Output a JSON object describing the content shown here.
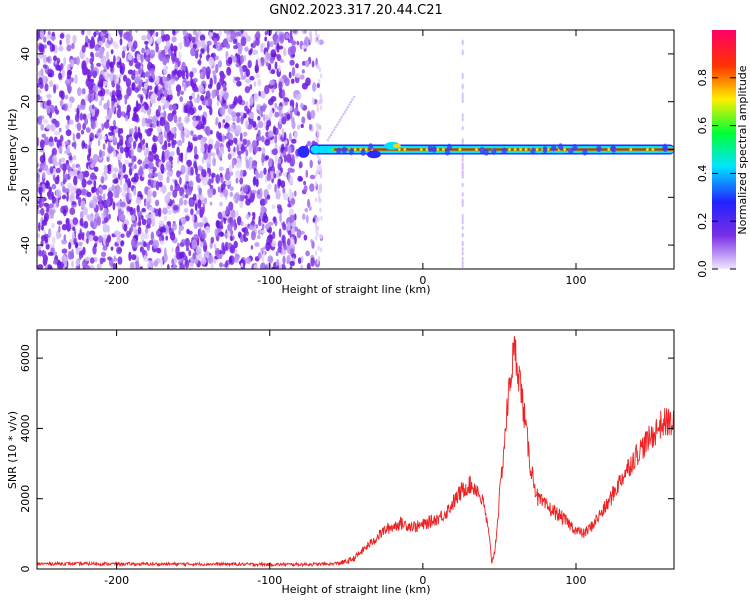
{
  "title": "GN02.2023.317.20.44.C21",
  "chart_data": [
    {
      "type": "heatmap",
      "xlabel": "Height of straight line (km)",
      "ylabel": "Frequency (Hz)",
      "xlim": [
        -252,
        164
      ],
      "ylim": [
        -50,
        50
      ],
      "x_ticks": [
        -200,
        -100,
        0,
        100
      ],
      "y_ticks": [
        -40,
        -20,
        0,
        20,
        40
      ],
      "colorbar": {
        "label": "Normalized spectral amplitude",
        "range": [
          0,
          1
        ],
        "ticks": [
          0.0,
          0.2,
          0.4,
          0.6,
          0.8
        ],
        "colors": [
          "#f0e6ff",
          "#7a2ee6",
          "#2222ff",
          "#00e5ff",
          "#00ff33",
          "#ffee00",
          "#ff3300",
          "#ff0066"
        ]
      },
      "noise_region_x": [
        -252,
        -66
      ],
      "carrier_frequency_hz": 0,
      "carrier_x": [
        -80,
        164
      ],
      "vertical_streak_x": 26
    },
    {
      "type": "line",
      "xlabel": "Height of straight line (km)",
      "ylabel": "SNR (10 * v/v)",
      "xlim": [
        -252,
        164
      ],
      "ylim": [
        0,
        6800
      ],
      "x_ticks": [
        -200,
        -100,
        0,
        100
      ],
      "y_ticks": [
        0,
        2000,
        4000,
        6000
      ],
      "series": [
        {
          "color": "#ee2222",
          "x": [
            -252,
            -220,
            -180,
            -140,
            -100,
            -80,
            -60,
            -50,
            -45,
            -40,
            -35,
            -30,
            -25,
            -20,
            -15,
            -10,
            -5,
            0,
            5,
            10,
            15,
            20,
            25,
            30,
            35,
            40,
            43,
            45,
            47,
            50,
            55,
            58,
            60,
            62,
            65,
            70,
            75,
            80,
            90,
            100,
            105,
            110,
            120,
            130,
            140,
            150,
            155,
            160,
            164
          ],
          "y": [
            150,
            150,
            140,
            140,
            130,
            130,
            140,
            200,
            300,
            500,
            700,
            900,
            1100,
            1200,
            1300,
            1250,
            1200,
            1250,
            1350,
            1450,
            1600,
            1900,
            2200,
            2400,
            2300,
            1800,
            1000,
            200,
            500,
            2000,
            4500,
            5800,
            6200,
            5800,
            4800,
            3000,
            2000,
            1800,
            1500,
            1100,
            1000,
            1200,
            1800,
            2600,
            3300,
            3800,
            4100,
            4200,
            4100
          ]
        }
      ]
    }
  ]
}
